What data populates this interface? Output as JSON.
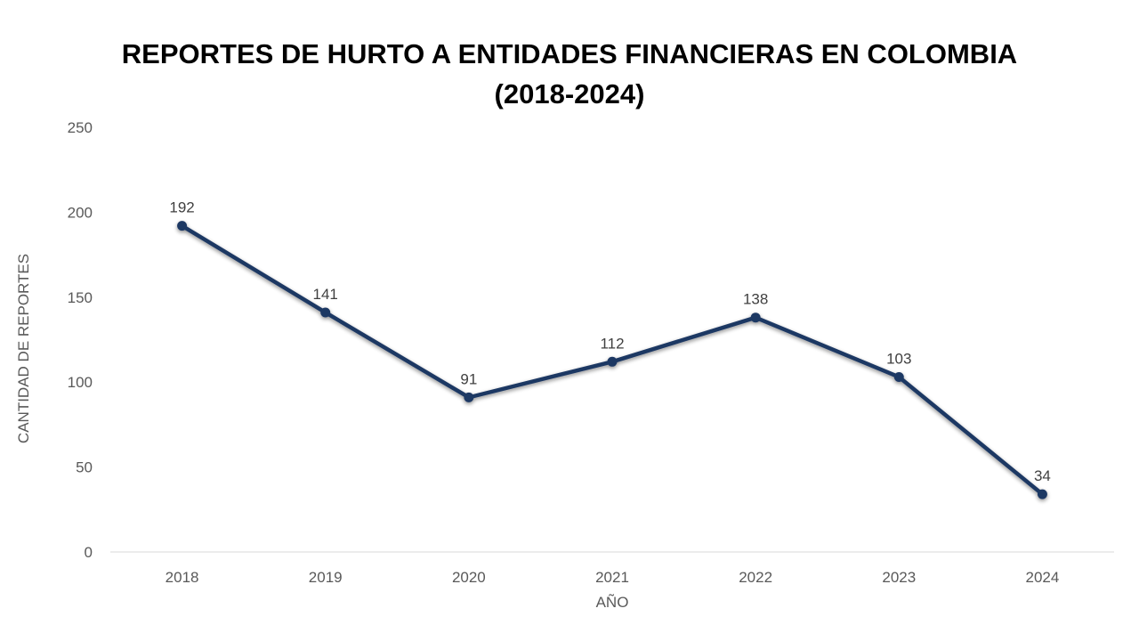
{
  "chart_data": {
    "type": "line",
    "title": "REPORTES DE HURTO A ENTIDADES FINANCIERAS EN COLOMBIA",
    "subtitle": "(2018-2024)",
    "xlabel": "AÑO",
    "ylabel": "CANTIDAD DE REPORTES",
    "categories": [
      "2018",
      "2019",
      "2020",
      "2021",
      "2022",
      "2023",
      "2024"
    ],
    "values": [
      192,
      141,
      91,
      112,
      138,
      103,
      34
    ],
    "data_labels": [
      "192",
      "141",
      "91",
      "112",
      "138",
      "103",
      "34"
    ],
    "y_ticks": [
      "0",
      "50",
      "100",
      "150",
      "200",
      "250"
    ],
    "ylim": [
      0,
      250
    ],
    "grid": false,
    "legend": "none",
    "line_color": "#1f3864"
  }
}
